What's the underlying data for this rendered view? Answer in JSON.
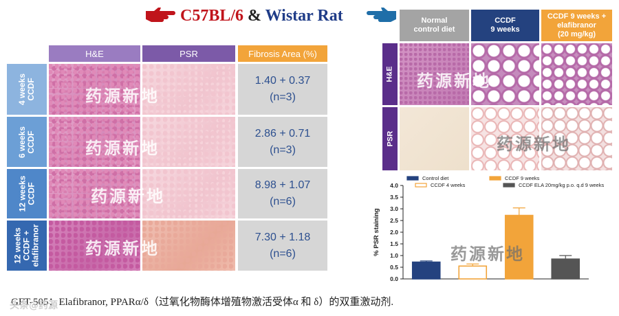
{
  "header": {
    "title_c57": "C57BL/6",
    "title_amp": " & ",
    "title_wistar": "Wistar Rat",
    "pointer_left_icon": "hand-pointing-right-icon",
    "pointer_right_icon": "hand-pointing-left-icon",
    "pointer_left_color": "#c0141b",
    "pointer_right_color": "#1f6ea8"
  },
  "left_table": {
    "columns": [
      "H&E",
      "PSR",
      "Fibrosis Area (%)"
    ],
    "rows": [
      {
        "label": "4 weeks\nCCDF",
        "mean": "1.40 + 0.37",
        "n": "(n=3)"
      },
      {
        "label": "6 weeks\nCCDF",
        "mean": "2.86 + 0.71",
        "n": "(n=3)"
      },
      {
        "label": "12 weeks\nCCDF",
        "mean": "8.98 + 1.07",
        "n": "(n=6)"
      },
      {
        "label": "12 weeks\nCCDF +\nelafibranor",
        "mean": "7.30 + 1.18",
        "n": "(n=6)"
      }
    ]
  },
  "right_panel": {
    "columns": [
      "Normal\ncontrol diet",
      "CCDF\n9 weeks",
      "CCDF 9 weeks +\nelafibranor\n(20 mg/kg)"
    ],
    "rows": [
      "H&E",
      "PSR"
    ]
  },
  "watermark": "药源新地",
  "chart_data": {
    "type": "bar",
    "categories": [
      "Control diet",
      "CCDF 4 weeks",
      "CCDF 9 weeks",
      "CCDF ELA 20mg/kg p.o. q.d 9 weeks"
    ],
    "values": [
      0.72,
      0.55,
      2.72,
      0.85
    ],
    "errors": [
      0.05,
      0.09,
      0.32,
      0.15
    ],
    "colors": [
      "#24427f",
      "#ffffff",
      "#f2a43a",
      "#555555"
    ],
    "edge_colors": [
      "#24427f",
      "#f2a43a",
      "#f2a43a",
      "#555555"
    ],
    "legend": [
      "Control diet",
      "CCDF 4 weeks",
      "CCDF 9 weeks",
      "CCDF ELA 20mg/kg p.o. q.d 9 weeks"
    ],
    "ylabel": "% PSR staining",
    "ylim": [
      0,
      4.0
    ],
    "yticks": [
      "0.0",
      "0.5",
      "1.0",
      "1.5",
      "2.0",
      "2.5",
      "3.0",
      "3.5",
      "4.0"
    ],
    "legend_position": "top"
  },
  "footnote": "GFT-505：Elafibranor, PPARα/δ（过氧化物酶体增殖物激活受体α 和 δ）的双重激动剂.",
  "corner_mark": "头条@药源"
}
